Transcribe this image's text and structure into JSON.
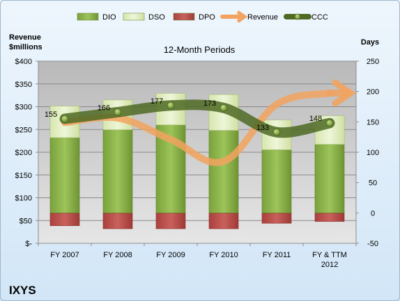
{
  "chart_data": {
    "type": "bar",
    "title": "12-Month Periods",
    "company": "IXYS",
    "left_axis_label": [
      "Revenue",
      "$millions"
    ],
    "right_axis_label": "Days",
    "categories": [
      [
        "FY 2007"
      ],
      [
        "FY 2008"
      ],
      [
        "FY 2009"
      ],
      [
        "FY 2010"
      ],
      [
        "FY 2011"
      ],
      [
        "FY & TTM",
        "2012"
      ]
    ],
    "left_axis": {
      "min": 0,
      "max": 400,
      "step": 50,
      "tick_labels": [
        "$-",
        "$50",
        "$100",
        "$150",
        "$200",
        "$250",
        "$300",
        "$350",
        "$400"
      ]
    },
    "right_axis": {
      "min": -50,
      "max": 250,
      "step": 50,
      "tick_labels": [
        "-50",
        "0",
        "50",
        "100",
        "150",
        "200",
        "250"
      ]
    },
    "legend": {
      "position": "top",
      "items": [
        {
          "name": "DIO",
          "kind": "bar",
          "color": "#8cb34a"
        },
        {
          "name": "DSO",
          "kind": "bar",
          "color": "#e3efc2"
        },
        {
          "name": "DPO",
          "kind": "bar",
          "color": "#c0504d"
        },
        {
          "name": "Revenue",
          "kind": "arrow",
          "color": "#f2a35f"
        },
        {
          "name": "CCC",
          "kind": "line-marker",
          "color": "#5f7f2f"
        }
      ]
    },
    "series": [
      {
        "name": "DIO",
        "axis": "right",
        "values": [
          124,
          137,
          145,
          136,
          104,
          113
        ]
      },
      {
        "name": "DSO",
        "axis": "right",
        "values": [
          52,
          49,
          52,
          59,
          49,
          47
        ]
      },
      {
        "name": "DPO",
        "axis": "right",
        "values": [
          -21,
          -26,
          -26,
          -26,
          -17,
          -14
        ]
      },
      {
        "name": "CCC",
        "axis": "right",
        "values": [
          155,
          166,
          177,
          173,
          133,
          148
        ]
      },
      {
        "name": "Revenue",
        "axis": "left",
        "values": [
          265,
          275,
          228,
          180,
          305,
          330
        ]
      }
    ]
  }
}
